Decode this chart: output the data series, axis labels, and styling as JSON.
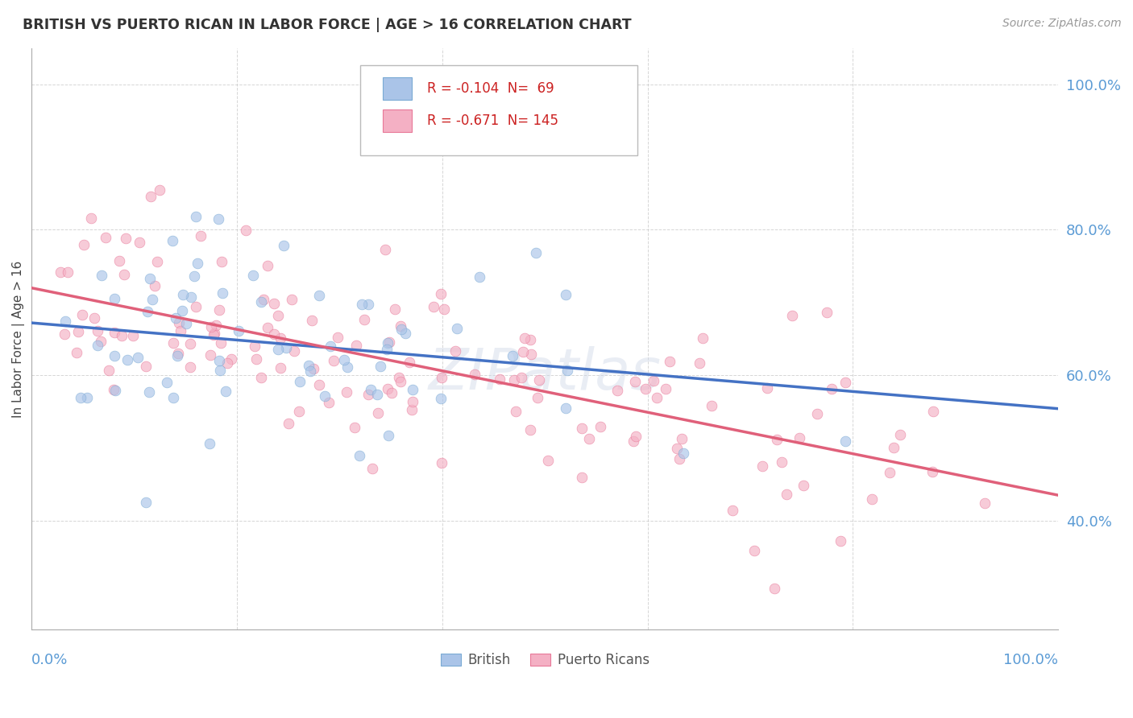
{
  "title": "BRITISH VS PUERTO RICAN IN LABOR FORCE | AGE > 16 CORRELATION CHART",
  "source": "Source: ZipAtlas.com",
  "ylabel": "In Labor Force | Age > 16",
  "xlim": [
    0.0,
    1.0
  ],
  "ylim": [
    0.25,
    1.05
  ],
  "yticks": [
    0.4,
    0.6,
    0.8,
    1.0
  ],
  "ytick_labels": [
    "40.0%",
    "60.0%",
    "80.0%",
    "100.0%"
  ],
  "british_color": "#aac4e8",
  "british_edge_color": "#7aaad4",
  "british_line_color": "#4472c4",
  "puerto_rican_color": "#f4b0c4",
  "puerto_rican_edge_color": "#e87898",
  "puerto_rican_line_color": "#e0607a",
  "legend_british_R": "-0.104",
  "legend_british_N": "69",
  "legend_puerto_rican_R": "-0.671",
  "legend_puerto_rican_N": "145",
  "background_color": "#ffffff",
  "grid_color": "#cccccc",
  "title_color": "#333333",
  "axis_label_color": "#5b9bd5",
  "marker_size": 10,
  "alpha": 0.65,
  "british_seed": 42,
  "puerto_rican_seed": 99
}
